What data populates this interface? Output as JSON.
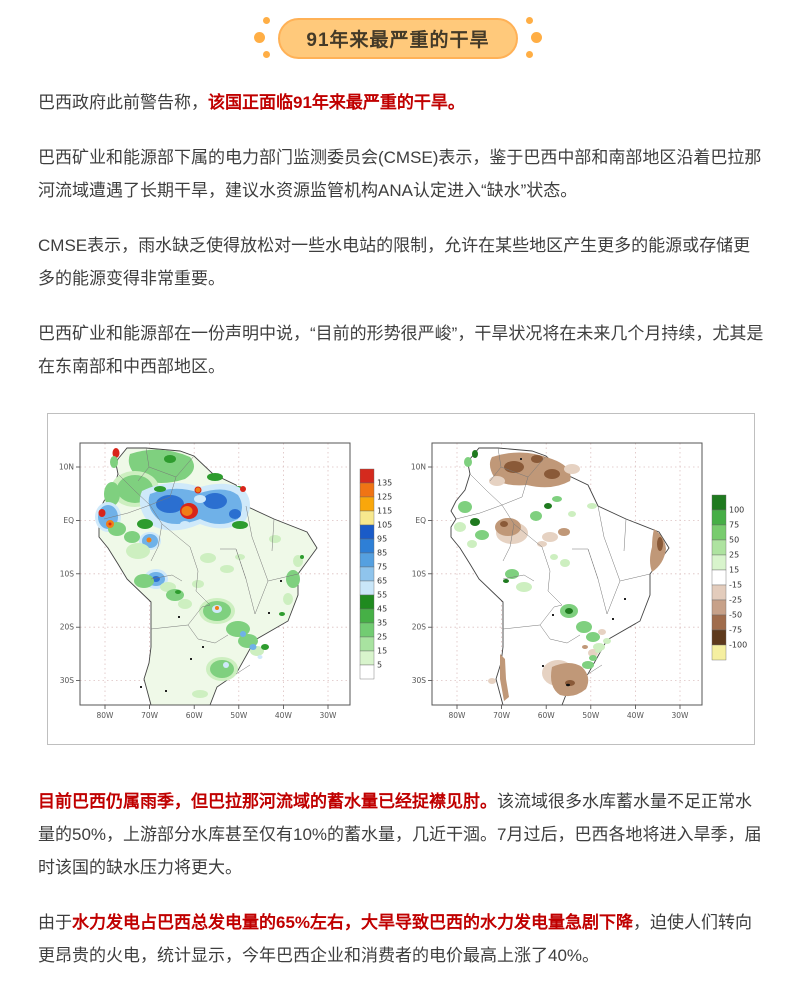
{
  "badge": {
    "text": "91年来最严重的干旱",
    "fill": "#FFC97B",
    "border": "#FFB156",
    "text_color": "#443A28",
    "dot_color": "#FFAE45"
  },
  "article": {
    "text_color": "#3E3E3E",
    "accent_red": "#C00000",
    "p1": {
      "pre": "巴西政府此前警告称，",
      "red": "该国正面临91年来最严重的干旱。"
    },
    "p2": "巴西矿业和能源部下属的电力部门监测委员会(CMSE)表示，鉴于巴西中部和南部地区沿着巴拉那河流域遭遇了长期干旱，建议水资源监管机构ANA认定进入“缺水”状态。",
    "p3": "CMSE表示，雨水缺乏使得放松对一些水电站的限制，允许在某些地区产生更多的能源或存储更多的能源变得非常重要。",
    "p4": "巴西矿业和能源部在一份声明中说，“目前的形势很严峻”，干旱状况将在未来几个月持续，尤其是在东南部和中西部地区。",
    "p5": {
      "red": "目前巴西仍属雨季，但巴拉那河流域的蓄水量已经捉襟见肘。",
      "post": "该流域很多水库蓄水量不足正常水量的50%，上游部分水库甚至仅有10%的蓄水量，几近干涸。7月过后，巴西各地将进入旱季，届时该国的缺水压力将更大。"
    },
    "p6": {
      "pre": "由于",
      "red": "水力发电占巴西总发电量的65%左右，大旱导致巴西的水力发电量急剧下降",
      "post": "，迫使人们转向更昂贵的火电，统计显示，今年巴西企业和消费者的电价最高上涨了40%。"
    }
  },
  "figure": {
    "left": {
      "y_ticks": [
        "10N",
        "EQ",
        "10S",
        "20S",
        "30S"
      ],
      "x_ticks": [
        "80W",
        "70W",
        "60W",
        "50W",
        "40W",
        "30W"
      ],
      "colorbar": {
        "labels": [
          "135",
          "125",
          "115",
          "105",
          "95",
          "85",
          "75",
          "65",
          "55",
          "45",
          "35",
          "25",
          "15",
          "5"
        ],
        "colors": [
          "#D42A1E",
          "#F07414",
          "#F9A70B",
          "#F7E88E",
          "#1A5BC8",
          "#2E7FD6",
          "#55A0E0",
          "#8FC4EC",
          "#C9E6F8",
          "#1F8A1F",
          "#46B046",
          "#72CC72",
          "#A8E3A0",
          "#D8F4CC",
          "#FFFFFF"
        ]
      }
    },
    "right": {
      "y_ticks": [
        "10N",
        "EQ",
        "10S",
        "20S",
        "30S"
      ],
      "x_ticks": [
        "80W",
        "70W",
        "60W",
        "50W",
        "40W",
        "30W"
      ],
      "colorbar": {
        "labels": [
          "100",
          "75",
          "50",
          "25",
          "15",
          "-15",
          "-25",
          "-50",
          "-75",
          "-100"
        ],
        "colors": [
          "#1F7A1F",
          "#46AE46",
          "#78CC6E",
          "#AEE3A0",
          "#D8F4CC",
          "#FFFFFF",
          "#E3CCBC",
          "#C7A189",
          "#A06C4C",
          "#5E3A1C",
          "#F5EFA0"
        ]
      }
    }
  }
}
